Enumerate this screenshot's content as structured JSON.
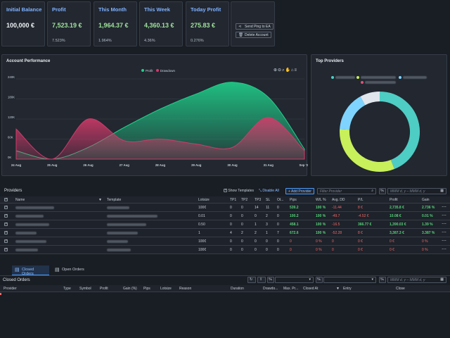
{
  "stats": [
    {
      "title": "Initial Balance",
      "value": "100,000 €",
      "sub": "",
      "green": false
    },
    {
      "title": "Profit",
      "value": "7,523.19 €",
      "sub": "7.523%",
      "green": true
    },
    {
      "title": "This Month",
      "value": "1,964.37 €",
      "sub": "1.964%",
      "green": true
    },
    {
      "title": "This Week",
      "value": "4,360.13 €",
      "sub": "4.36%",
      "green": true
    },
    {
      "title": "Today Profit",
      "value": "275.83 €",
      "sub": "0.276%",
      "green": true
    }
  ],
  "actions": {
    "send_ping": "Send Ping to EA",
    "delete_account": "Delete Account"
  },
  "colors": {
    "accent": "#4a9cff",
    "profit": "#1fcf8a",
    "drawdown": "#d13a6a",
    "positive": "#56d37a",
    "negative": "#f06a6a"
  },
  "performance": {
    "title": "Account Performance",
    "legend": [
      "Profit",
      "Drawdown"
    ],
    "toolbar_icons": [
      "zoom-in-icon",
      "zoom-out-icon",
      "zoom-select-icon",
      "pan-icon",
      "reset-icon",
      "menu-icon"
    ]
  },
  "chart_data": [
    {
      "type": "area",
      "title": "Account Performance",
      "x": [
        "24 Aug",
        "25 Aug",
        "26 Aug",
        "27 Aug",
        "28 Aug",
        "29 Aug",
        "30 Aug",
        "31 Aug",
        "Sep '20"
      ],
      "y_ticks": [
        "0K",
        "60K",
        "120K",
        "180K",
        "240K"
      ],
      "ylim": [
        0,
        240
      ],
      "series": [
        {
          "name": "Profit",
          "values": [
            25,
            0,
            35,
            95,
            150,
            195,
            230,
            185,
            30
          ]
        },
        {
          "name": "Drawdown",
          "values": [
            90,
            0,
            120,
            55,
            60,
            45,
            35,
            125,
            25
          ]
        }
      ],
      "legend": "top-center"
    },
    {
      "type": "pie",
      "title": "Top Providers",
      "values": [
        44,
        32,
        16,
        8
      ],
      "colors": [
        "#4ecdc4",
        "#c8f05a",
        "#7fd4ff",
        "#e0e6ec"
      ],
      "legend": "top-center"
    }
  ],
  "providers_chart": {
    "title": "Top Providers"
  },
  "providers": {
    "label": "Providers",
    "show_templates": "Show Templates",
    "disable_all": "Disable All",
    "add_provider": "+ Add Provider",
    "filter_placeholder": "Filter Provider",
    "date_placeholder": "MMM d, y – MMM d, y",
    "columns": [
      "Name",
      "Template",
      "Lotsize",
      "TP1",
      "TP2",
      "TP3",
      "SL",
      "Ot...",
      "Pips",
      "W/L %",
      "Avg. DD",
      "P/L",
      "Profit",
      "Gain"
    ],
    "rows": [
      {
        "lotsize": "100€",
        "tp1": "0",
        "tp2": "0",
        "tp3": "14",
        "sl": "11",
        "ot": "0",
        "pips": "539.2",
        "wl": "100 %",
        "dd": "-11.44",
        "pl": "8 €",
        "profit": "2,735.8 €",
        "gain": "2.736 %"
      },
      {
        "lotsize": "0.01",
        "tp1": "0",
        "tp2": "0",
        "tp3": "0",
        "sl": "2",
        "ot": "0",
        "pips": "100.2",
        "wl": "100 %",
        "dd": "-49.7",
        "pl": "-4.52 €",
        "profit": "10.08 €",
        "gain": "0.01 %"
      },
      {
        "lotsize": "0.50",
        "tp1": "0",
        "tp2": "0",
        "tp3": "1",
        "sl": "3",
        "ot": "0",
        "pips": "458.1",
        "wl": "100 %",
        "dd": "-16.5",
        "pl": "366.77 €",
        "profit": "1,390.03 €",
        "gain": "1.39 %"
      },
      {
        "lotsize": "1",
        "tp1": "4",
        "tp2": "2",
        "tp3": "2",
        "sl": "1",
        "ot": "7",
        "pips": "672.6",
        "wl": "100 %",
        "dd": "-52.28",
        "pl": "8 €",
        "profit": "3,387.3 €",
        "gain": "3.387 %"
      },
      {
        "lotsize": "100€",
        "tp1": "0",
        "tp2": "0",
        "tp3": "0",
        "sl": "0",
        "ot": "0",
        "pips": "0",
        "wl": "0 %",
        "dd": "0",
        "pl": "0 €",
        "profit": "0 €",
        "gain": "0 %"
      },
      {
        "lotsize": "100€",
        "tp1": "0",
        "tp2": "0",
        "tp3": "0",
        "sl": "0",
        "ot": "0",
        "pips": "0",
        "wl": "0 %",
        "dd": "0",
        "pl": "0 €",
        "profit": "0 €",
        "gain": "0 %"
      }
    ]
  },
  "tabs": [
    "Closed Orders",
    "Open Orders"
  ],
  "closed_orders": {
    "label": "Closed Orders",
    "date_placeholder": "MMM d, y – MMM d, y",
    "columns": [
      "Provider",
      "Type",
      "Symbol",
      "Profit",
      "Gain (%)",
      "Pips",
      "Lotsize",
      "Reason",
      "Duration",
      "Drawdo...",
      "Max. Pr...",
      "Closed At",
      "Entry",
      "Close"
    ]
  }
}
